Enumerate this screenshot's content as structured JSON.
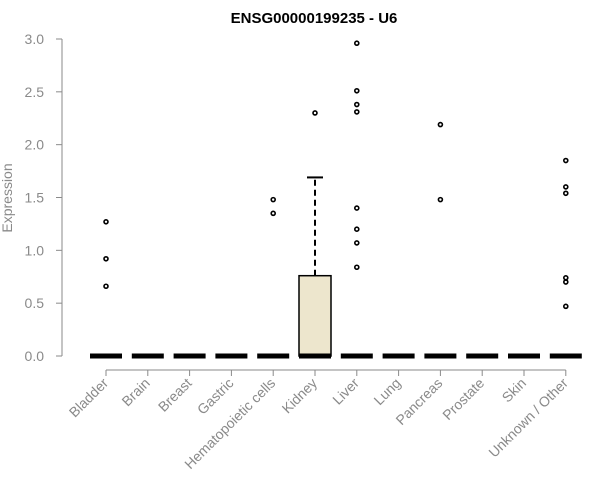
{
  "chart_data": {
    "type": "box",
    "title": "ENSG00000199235 - U6",
    "xlabel": "",
    "ylabel": "Expression",
    "ylim": [
      0,
      3.0
    ],
    "yticks": [
      "0.0",
      "0.5",
      "1.0",
      "1.5",
      "2.0",
      "2.5",
      "3.0"
    ],
    "categories": [
      "Bladder",
      "Brain",
      "Breast",
      "Gastric",
      "Hematopoietic cells",
      "Kidney",
      "Liver",
      "Lung",
      "Pancreas",
      "Prostate",
      "Skin",
      "Unknown / Other"
    ],
    "boxes": [
      {
        "category": "Bladder",
        "q1": 0,
        "median": 0,
        "q3": 0,
        "whisker_low": 0,
        "whisker_high": 0,
        "outliers": [
          1.27,
          0.92,
          0.66
        ]
      },
      {
        "category": "Brain",
        "q1": 0,
        "median": 0,
        "q3": 0,
        "whisker_low": 0,
        "whisker_high": 0,
        "outliers": []
      },
      {
        "category": "Breast",
        "q1": 0,
        "median": 0,
        "q3": 0,
        "whisker_low": 0,
        "whisker_high": 0,
        "outliers": []
      },
      {
        "category": "Gastric",
        "q1": 0,
        "median": 0,
        "q3": 0,
        "whisker_low": 0,
        "whisker_high": 0,
        "outliers": []
      },
      {
        "category": "Hematopoietic cells",
        "q1": 0,
        "median": 0,
        "q3": 0,
        "whisker_low": 0,
        "whisker_high": 0,
        "outliers": [
          1.48,
          1.35
        ]
      },
      {
        "category": "Kidney",
        "q1": 0,
        "median": 0,
        "q3": 0.76,
        "whisker_low": 0,
        "whisker_high": 1.69,
        "outliers": [
          2.3
        ]
      },
      {
        "category": "Liver",
        "q1": 0,
        "median": 0,
        "q3": 0,
        "whisker_low": 0,
        "whisker_high": 0,
        "outliers": [
          2.96,
          2.51,
          2.38,
          2.31,
          1.4,
          1.2,
          1.07,
          0.84
        ]
      },
      {
        "category": "Lung",
        "q1": 0,
        "median": 0,
        "q3": 0,
        "whisker_low": 0,
        "whisker_high": 0,
        "outliers": []
      },
      {
        "category": "Pancreas",
        "q1": 0,
        "median": 0,
        "q3": 0,
        "whisker_low": 0,
        "whisker_high": 0,
        "outliers": [
          2.19,
          1.48
        ]
      },
      {
        "category": "Prostate",
        "q1": 0,
        "median": 0,
        "q3": 0,
        "whisker_low": 0,
        "whisker_high": 0,
        "outliers": []
      },
      {
        "category": "Skin",
        "q1": 0,
        "median": 0,
        "q3": 0,
        "whisker_low": 0,
        "whisker_high": 0,
        "outliers": []
      },
      {
        "category": "Unknown / Other",
        "q1": 0,
        "median": 0,
        "q3": 0,
        "whisker_low": 0,
        "whisker_high": 0,
        "outliers": [
          1.85,
          1.6,
          1.54,
          0.74,
          0.7,
          0.47
        ]
      }
    ],
    "box_fill": "#ede6cd",
    "grid": false,
    "legend": "none"
  }
}
